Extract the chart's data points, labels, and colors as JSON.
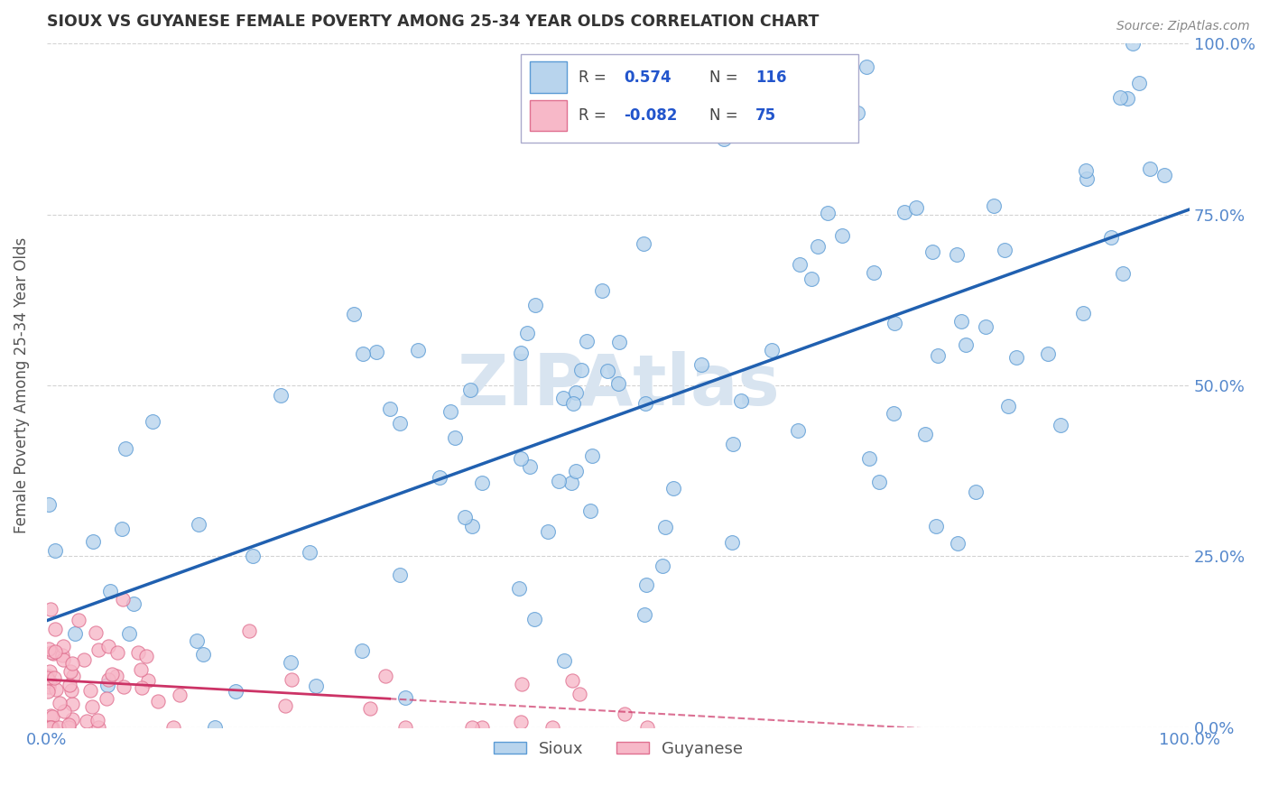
{
  "title": "SIOUX VS GUYANESE FEMALE POVERTY AMONG 25-34 YEAR OLDS CORRELATION CHART",
  "source": "Source: ZipAtlas.com",
  "ylabel": "Female Poverty Among 25-34 Year Olds",
  "sioux_R": 0.574,
  "sioux_N": 116,
  "guyanese_R": -0.082,
  "guyanese_N": 75,
  "sioux_color": "#b8d4ed",
  "sioux_edge_color": "#5b9bd5",
  "sioux_line_color": "#2060b0",
  "guyanese_color": "#f7b8c8",
  "guyanese_edge_color": "#e07090",
  "guyanese_line_color": "#cc3366",
  "background_color": "#ffffff",
  "grid_color": "#c8c8c8",
  "tick_label_color": "#5588cc",
  "watermark": "ZIPAtlas",
  "watermark_color": "#d8e4f0",
  "legend_R_color": "#2255cc",
  "legend_label_color": "#444444",
  "sioux_line_intercept": 0.2,
  "sioux_line_slope": 0.55,
  "guyanese_line_intercept": 0.075,
  "guyanese_line_slope": -0.07,
  "ylim": [
    0.0,
    1.0
  ],
  "xlim": [
    0.0,
    1.0
  ],
  "yticks": [
    0.0,
    0.25,
    0.5,
    0.75,
    1.0
  ],
  "ytick_labels": [
    "0.0%",
    "25.0%",
    "50.0%",
    "75.0%",
    "100.0%"
  ],
  "xticks": [
    0.0,
    1.0
  ],
  "xtick_labels": [
    "0.0%",
    "100.0%"
  ]
}
